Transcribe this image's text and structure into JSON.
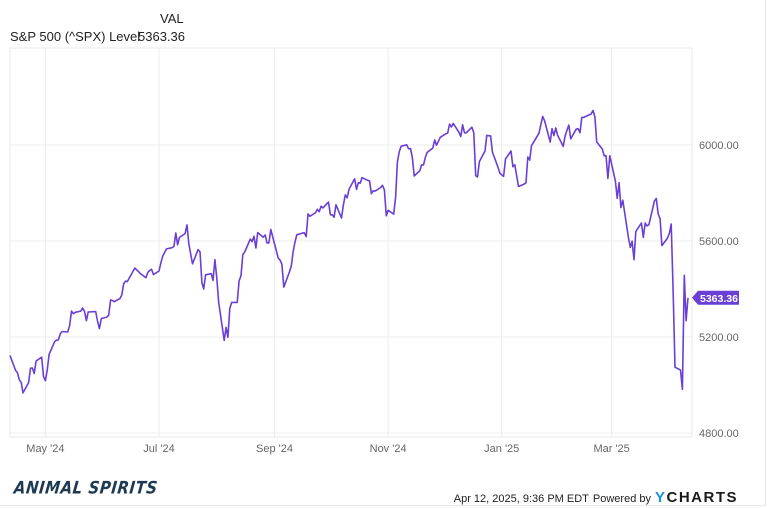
{
  "header": {
    "column_label": "VAL",
    "series_name": "S&P 500 (^SPX) Level",
    "series_value": "5363.36"
  },
  "footer": {
    "timestamp": "Apr 12, 2025, 9:36 PM EDT",
    "powered_by": "Powered by",
    "brand_y": "Y",
    "brand_rest": "CHARTS",
    "logo_text": "ANIMAL SPIRITS"
  },
  "colors": {
    "line": "#6a3fd6",
    "badge": "#6a3fd6",
    "grid": "#ececec",
    "axis_text": "#666666"
  },
  "chart_data": {
    "type": "line",
    "title": "S&P 500 (^SPX) Level",
    "xlabel": "",
    "ylabel": "",
    "ylim": [
      4800,
      6300
    ],
    "yticks": [
      "4800.00",
      "5200.00",
      "5600.00",
      "6000.00"
    ],
    "xticks": [
      "May '24",
      "Jul '24",
      "Sep '24",
      "Nov '24",
      "Jan '25",
      "Mar '25"
    ],
    "grid": true,
    "legend_position": "top-left",
    "last_value_label": "5363.36",
    "series": [
      {
        "name": "S&P 500 (^SPX) Level",
        "color": "#6a3fd6",
        "points": [
          [
            "2024-04-12",
            5123
          ],
          [
            "2024-04-15",
            5061
          ],
          [
            "2024-04-16",
            5051
          ],
          [
            "2024-04-17",
            5022
          ],
          [
            "2024-04-18",
            5011
          ],
          [
            "2024-04-19",
            4967
          ],
          [
            "2024-04-22",
            5010
          ],
          [
            "2024-04-23",
            5070
          ],
          [
            "2024-04-24",
            5071
          ],
          [
            "2024-04-25",
            5048
          ],
          [
            "2024-04-26",
            5100
          ],
          [
            "2024-04-29",
            5116
          ],
          [
            "2024-04-30",
            5036
          ],
          [
            "2024-05-01",
            5018
          ],
          [
            "2024-05-02",
            5064
          ],
          [
            "2024-05-03",
            5128
          ],
          [
            "2024-05-06",
            5181
          ],
          [
            "2024-05-07",
            5187
          ],
          [
            "2024-05-08",
            5188
          ],
          [
            "2024-05-09",
            5214
          ],
          [
            "2024-05-10",
            5223
          ],
          [
            "2024-05-13",
            5221
          ],
          [
            "2024-05-14",
            5247
          ],
          [
            "2024-05-15",
            5308
          ],
          [
            "2024-05-16",
            5297
          ],
          [
            "2024-05-17",
            5303
          ],
          [
            "2024-05-20",
            5308
          ],
          [
            "2024-05-21",
            5321
          ],
          [
            "2024-05-22",
            5307
          ],
          [
            "2024-05-23",
            5268
          ],
          [
            "2024-05-24",
            5304
          ],
          [
            "2024-05-28",
            5306
          ],
          [
            "2024-05-29",
            5267
          ],
          [
            "2024-05-30",
            5235
          ],
          [
            "2024-05-31",
            5277
          ],
          [
            "2024-06-03",
            5283
          ],
          [
            "2024-06-04",
            5291
          ],
          [
            "2024-06-05",
            5354
          ],
          [
            "2024-06-06",
            5352
          ],
          [
            "2024-06-07",
            5347
          ],
          [
            "2024-06-10",
            5360
          ],
          [
            "2024-06-11",
            5375
          ],
          [
            "2024-06-12",
            5421
          ],
          [
            "2024-06-13",
            5433
          ],
          [
            "2024-06-14",
            5431
          ],
          [
            "2024-06-17",
            5473
          ],
          [
            "2024-06-18",
            5487
          ],
          [
            "2024-06-20",
            5473
          ],
          [
            "2024-06-21",
            5464
          ],
          [
            "2024-06-24",
            5447
          ],
          [
            "2024-06-25",
            5469
          ],
          [
            "2024-06-26",
            5477
          ],
          [
            "2024-06-27",
            5482
          ],
          [
            "2024-06-28",
            5460
          ],
          [
            "2024-07-01",
            5475
          ],
          [
            "2024-07-02",
            5509
          ],
          [
            "2024-07-03",
            5537
          ],
          [
            "2024-07-05",
            5567
          ],
          [
            "2024-07-08",
            5572
          ],
          [
            "2024-07-09",
            5577
          ],
          [
            "2024-07-10",
            5633
          ],
          [
            "2024-07-11",
            5584
          ],
          [
            "2024-07-12",
            5615
          ],
          [
            "2024-07-15",
            5631
          ],
          [
            "2024-07-16",
            5667
          ],
          [
            "2024-07-17",
            5589
          ],
          [
            "2024-07-18",
            5545
          ],
          [
            "2024-07-19",
            5505
          ],
          [
            "2024-07-22",
            5564
          ],
          [
            "2024-07-23",
            5555
          ],
          [
            "2024-07-24",
            5427
          ],
          [
            "2024-07-25",
            5400
          ],
          [
            "2024-07-26",
            5459
          ],
          [
            "2024-07-29",
            5464
          ],
          [
            "2024-07-30",
            5436
          ],
          [
            "2024-07-31",
            5522
          ],
          [
            "2024-08-01",
            5446
          ],
          [
            "2024-08-02",
            5347
          ],
          [
            "2024-08-05",
            5186
          ],
          [
            "2024-08-06",
            5240
          ],
          [
            "2024-08-07",
            5199
          ],
          [
            "2024-08-08",
            5319
          ],
          [
            "2024-08-09",
            5344
          ],
          [
            "2024-08-12",
            5344
          ],
          [
            "2024-08-13",
            5434
          ],
          [
            "2024-08-14",
            5455
          ],
          [
            "2024-08-15",
            5543
          ],
          [
            "2024-08-16",
            5554
          ],
          [
            "2024-08-19",
            5608
          ],
          [
            "2024-08-20",
            5597
          ],
          [
            "2024-08-21",
            5620
          ],
          [
            "2024-08-22",
            5571
          ],
          [
            "2024-08-23",
            5635
          ],
          [
            "2024-08-26",
            5616
          ],
          [
            "2024-08-27",
            5625
          ],
          [
            "2024-08-28",
            5592
          ],
          [
            "2024-08-29",
            5592
          ],
          [
            "2024-08-30",
            5648
          ],
          [
            "2024-09-03",
            5529
          ],
          [
            "2024-09-04",
            5520
          ],
          [
            "2024-09-05",
            5503
          ],
          [
            "2024-09-06",
            5408
          ],
          [
            "2024-09-09",
            5471
          ],
          [
            "2024-09-10",
            5496
          ],
          [
            "2024-09-11",
            5554
          ],
          [
            "2024-09-12",
            5596
          ],
          [
            "2024-09-13",
            5626
          ],
          [
            "2024-09-16",
            5633
          ],
          [
            "2024-09-17",
            5634
          ],
          [
            "2024-09-18",
            5618
          ],
          [
            "2024-09-19",
            5713
          ],
          [
            "2024-09-20",
            5703
          ],
          [
            "2024-09-23",
            5718
          ],
          [
            "2024-09-24",
            5732
          ],
          [
            "2024-09-25",
            5722
          ],
          [
            "2024-09-26",
            5745
          ],
          [
            "2024-09-27",
            5738
          ],
          [
            "2024-09-30",
            5762
          ],
          [
            "2024-10-01",
            5709
          ],
          [
            "2024-10-02",
            5709
          ],
          [
            "2024-10-03",
            5699
          ],
          [
            "2024-10-04",
            5751
          ],
          [
            "2024-10-07",
            5696
          ],
          [
            "2024-10-08",
            5751
          ],
          [
            "2024-10-09",
            5792
          ],
          [
            "2024-10-10",
            5780
          ],
          [
            "2024-10-11",
            5815
          ],
          [
            "2024-10-14",
            5859
          ],
          [
            "2024-10-15",
            5815
          ],
          [
            "2024-10-16",
            5843
          ],
          [
            "2024-10-17",
            5841
          ],
          [
            "2024-10-18",
            5864
          ],
          [
            "2024-10-21",
            5853
          ],
          [
            "2024-10-22",
            5851
          ],
          [
            "2024-10-23",
            5797
          ],
          [
            "2024-10-24",
            5809
          ],
          [
            "2024-10-25",
            5808
          ],
          [
            "2024-10-28",
            5823
          ],
          [
            "2024-10-29",
            5832
          ],
          [
            "2024-10-30",
            5813
          ],
          [
            "2024-10-31",
            5705
          ],
          [
            "2024-11-01",
            5728
          ],
          [
            "2024-11-04",
            5712
          ],
          [
            "2024-11-05",
            5782
          ],
          [
            "2024-11-06",
            5929
          ],
          [
            "2024-11-07",
            5973
          ],
          [
            "2024-11-08",
            5995
          ],
          [
            "2024-11-11",
            6001
          ],
          [
            "2024-11-12",
            5984
          ],
          [
            "2024-11-13",
            5985
          ],
          [
            "2024-11-14",
            5949
          ],
          [
            "2024-11-15",
            5871
          ],
          [
            "2024-11-18",
            5893
          ],
          [
            "2024-11-19",
            5917
          ],
          [
            "2024-11-20",
            5917
          ],
          [
            "2024-11-21",
            5949
          ],
          [
            "2024-11-22",
            5969
          ],
          [
            "2024-11-25",
            5987
          ],
          [
            "2024-11-26",
            6021
          ],
          [
            "2024-11-27",
            5999
          ],
          [
            "2024-11-29",
            6032
          ],
          [
            "2024-12-02",
            6047
          ],
          [
            "2024-12-03",
            6050
          ],
          [
            "2024-12-04",
            6087
          ],
          [
            "2024-12-05",
            6075
          ],
          [
            "2024-12-06",
            6090
          ],
          [
            "2024-12-09",
            6053
          ],
          [
            "2024-12-10",
            6035
          ],
          [
            "2024-12-11",
            6084
          ],
          [
            "2024-12-12",
            6051
          ],
          [
            "2024-12-13",
            6051
          ],
          [
            "2024-12-16",
            6074
          ],
          [
            "2024-12-17",
            6051
          ],
          [
            "2024-12-18",
            5872
          ],
          [
            "2024-12-19",
            5867
          ],
          [
            "2024-12-20",
            5931
          ],
          [
            "2024-12-23",
            5975
          ],
          [
            "2024-12-24",
            6040
          ],
          [
            "2024-12-26",
            6038
          ],
          [
            "2024-12-27",
            5971
          ],
          [
            "2024-12-30",
            5907
          ],
          [
            "2024-12-31",
            5882
          ],
          [
            "2025-01-02",
            5869
          ],
          [
            "2025-01-03",
            5942
          ],
          [
            "2025-01-06",
            5975
          ],
          [
            "2025-01-07",
            5909
          ],
          [
            "2025-01-08",
            5918
          ],
          [
            "2025-01-10",
            5827
          ],
          [
            "2025-01-13",
            5837
          ],
          [
            "2025-01-14",
            5843
          ],
          [
            "2025-01-15",
            5950
          ],
          [
            "2025-01-16",
            5937
          ],
          [
            "2025-01-17",
            5997
          ],
          [
            "2025-01-21",
            6049
          ],
          [
            "2025-01-22",
            6086
          ],
          [
            "2025-01-23",
            6119
          ],
          [
            "2025-01-24",
            6101
          ],
          [
            "2025-01-27",
            6012
          ],
          [
            "2025-01-28",
            6068
          ],
          [
            "2025-01-29",
            6039
          ],
          [
            "2025-01-30",
            6071
          ],
          [
            "2025-01-31",
            6041
          ],
          [
            "2025-02-03",
            5994
          ],
          [
            "2025-02-04",
            6037
          ],
          [
            "2025-02-05",
            6061
          ],
          [
            "2025-02-06",
            6083
          ],
          [
            "2025-02-07",
            6026
          ],
          [
            "2025-02-10",
            6066
          ],
          [
            "2025-02-11",
            6068
          ],
          [
            "2025-02-12",
            6051
          ],
          [
            "2025-02-13",
            6115
          ],
          [
            "2025-02-14",
            6115
          ],
          [
            "2025-02-18",
            6129
          ],
          [
            "2025-02-19",
            6144
          ],
          [
            "2025-02-20",
            6117
          ],
          [
            "2025-02-21",
            6013
          ],
          [
            "2025-02-24",
            5983
          ],
          [
            "2025-02-25",
            5955
          ],
          [
            "2025-02-26",
            5956
          ],
          [
            "2025-02-27",
            5861
          ],
          [
            "2025-02-28",
            5955
          ],
          [
            "2025-03-03",
            5849
          ],
          [
            "2025-03-04",
            5778
          ],
          [
            "2025-03-05",
            5843
          ],
          [
            "2025-03-06",
            5739
          ],
          [
            "2025-03-07",
            5770
          ],
          [
            "2025-03-10",
            5615
          ],
          [
            "2025-03-11",
            5573
          ],
          [
            "2025-03-12",
            5599
          ],
          [
            "2025-03-13",
            5522
          ],
          [
            "2025-03-14",
            5639
          ],
          [
            "2025-03-17",
            5675
          ],
          [
            "2025-03-18",
            5615
          ],
          [
            "2025-03-19",
            5675
          ],
          [
            "2025-03-20",
            5663
          ],
          [
            "2025-03-21",
            5668
          ],
          [
            "2025-03-24",
            5768
          ],
          [
            "2025-03-25",
            5777
          ],
          [
            "2025-03-26",
            5712
          ],
          [
            "2025-03-27",
            5693
          ],
          [
            "2025-03-28",
            5581
          ],
          [
            "2025-03-31",
            5612
          ],
          [
            "2025-04-01",
            5633
          ],
          [
            "2025-04-02",
            5671
          ],
          [
            "2025-04-03",
            5397
          ],
          [
            "2025-04-04",
            5074
          ],
          [
            "2025-04-07",
            5062
          ],
          [
            "2025-04-08",
            4982
          ],
          [
            "2025-04-09",
            5457
          ],
          [
            "2025-04-10",
            5268
          ],
          [
            "2025-04-11",
            5363.36
          ]
        ]
      }
    ]
  }
}
